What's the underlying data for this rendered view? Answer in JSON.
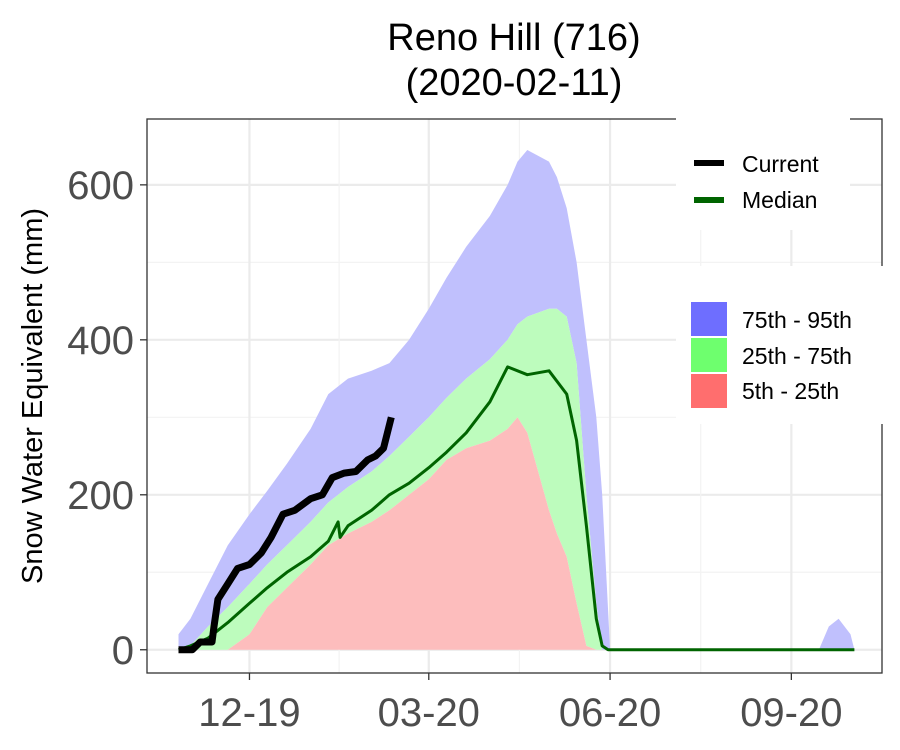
{
  "chart_data": {
    "type": "area",
    "title_lines": [
      "Reno Hill (716)",
      "(2020-02-11)"
    ],
    "ylabel": "Snow Water Equivalent (mm)",
    "xlabel": "",
    "ylim": [
      -30,
      685
    ],
    "xlim": [
      "2019-10-10",
      "2020-10-17"
    ],
    "y_ticks": [
      0,
      200,
      400,
      600
    ],
    "y_tick_labels": [
      "0",
      "200",
      "400",
      "600"
    ],
    "x_ticks": [
      "2019-12-01",
      "2020-03-01",
      "2020-06-01",
      "2020-09-01"
    ],
    "x_tick_labels": [
      "12-19",
      "03-20",
      "06-20",
      "09-20"
    ],
    "grid": true,
    "legend_lines": {
      "placement": "top-right",
      "entries": [
        {
          "name": "Current",
          "color": "#000000"
        },
        {
          "name": "Median",
          "color": "#006400"
        }
      ]
    },
    "legend_bands": {
      "placement": "right",
      "entries": [
        {
          "name": "75th - 95th",
          "color": "#6e6eff"
        },
        {
          "name": "25th - 75th",
          "color": "#6eff6e"
        },
        {
          "name": "5th - 25th",
          "color": "#ff6e6e"
        }
      ]
    },
    "band_colors": {
      "p75_95": "#c0c0fd",
      "p25_75": "#bdfcbd",
      "p5_25": "#fdbdbd"
    },
    "percentiles": {
      "x": [
        "2019-10-26",
        "2019-11-01",
        "2019-11-10",
        "2019-11-20",
        "2019-12-01",
        "2019-12-10",
        "2019-12-20",
        "2020-01-01",
        "2020-01-10",
        "2020-01-20",
        "2020-02-01",
        "2020-02-10",
        "2020-02-20",
        "2020-03-01",
        "2020-03-10",
        "2020-03-20",
        "2020-04-01",
        "2020-04-10",
        "2020-04-15",
        "2020-04-20",
        "2020-05-01",
        "2020-05-05",
        "2020-05-10",
        "2020-05-15",
        "2020-05-20",
        "2020-05-25",
        "2020-05-28",
        "2020-06-01",
        "2020-06-05",
        "2020-06-10",
        "2020-06-15",
        "2020-06-20",
        "2020-06-25",
        "2020-07-01",
        "2020-08-01",
        "2020-09-01",
        "2020-09-15",
        "2020-09-20",
        "2020-09-25",
        "2020-10-01",
        "2020-10-03"
      ],
      "p5": [
        0,
        0,
        0,
        0,
        0,
        0,
        0,
        0,
        0,
        0,
        0,
        0,
        0,
        0,
        0,
        0,
        0,
        0,
        0,
        0,
        0,
        0,
        0,
        0,
        0,
        0,
        0,
        0,
        0,
        0,
        0,
        0,
        0,
        0,
        0,
        0,
        0,
        0,
        0,
        0,
        0
      ],
      "p25": [
        0,
        0,
        0,
        0,
        20,
        55,
        80,
        110,
        135,
        150,
        165,
        180,
        200,
        220,
        245,
        260,
        270,
        285,
        300,
        280,
        180,
        150,
        120,
        60,
        5,
        0,
        0,
        0,
        0,
        0,
        0,
        0,
        0,
        0,
        0,
        0,
        0,
        0,
        0,
        0,
        0
      ],
      "p75": [
        0,
        5,
        30,
        55,
        85,
        110,
        135,
        165,
        190,
        210,
        230,
        250,
        275,
        300,
        325,
        350,
        375,
        400,
        420,
        430,
        440,
        440,
        430,
        370,
        200,
        60,
        0,
        0,
        0,
        0,
        0,
        0,
        0,
        0,
        0,
        0,
        0,
        0,
        0,
        0,
        0
      ],
      "p95": [
        20,
        40,
        85,
        135,
        175,
        205,
        240,
        285,
        330,
        350,
        360,
        370,
        400,
        440,
        480,
        520,
        560,
        600,
        630,
        645,
        630,
        610,
        570,
        500,
        400,
        300,
        200,
        0,
        0,
        0,
        0,
        0,
        0,
        0,
        0,
        0,
        0,
        30,
        40,
        20,
        0
      ]
    },
    "series": [
      {
        "name": "Current",
        "color": "#000000",
        "x": [
          "2019-10-26",
          "2019-11-02",
          "2019-11-06",
          "2019-11-12",
          "2019-11-13",
          "2019-11-15",
          "2019-11-20",
          "2019-11-25",
          "2019-12-01",
          "2019-12-07",
          "2019-12-12",
          "2019-12-18",
          "2019-12-24",
          "2020-01-01",
          "2020-01-07",
          "2020-01-12",
          "2020-01-18",
          "2020-01-24",
          "2020-01-30",
          "2020-02-03",
          "2020-02-07",
          "2020-02-09",
          "2020-02-11"
        ],
        "y": [
          0,
          0,
          10,
          10,
          30,
          65,
          85,
          105,
          110,
          125,
          145,
          175,
          180,
          195,
          200,
          222,
          228,
          230,
          245,
          250,
          260,
          280,
          300
        ]
      },
      {
        "name": "Median",
        "color": "#006400",
        "x": [
          "2019-10-26",
          "2019-11-01",
          "2019-11-10",
          "2019-11-20",
          "2019-12-01",
          "2019-12-10",
          "2019-12-20",
          "2020-01-01",
          "2020-01-10",
          "2020-01-15",
          "2020-01-16",
          "2020-01-20",
          "2020-02-01",
          "2020-02-10",
          "2020-02-20",
          "2020-03-01",
          "2020-03-10",
          "2020-03-20",
          "2020-04-01",
          "2020-04-10",
          "2020-04-20",
          "2020-05-01",
          "2020-05-10",
          "2020-05-15",
          "2020-05-20",
          "2020-05-25",
          "2020-05-28",
          "2020-05-31",
          "2020-06-01",
          "2020-10-03"
        ],
        "y": [
          0,
          5,
          15,
          35,
          60,
          80,
          100,
          120,
          140,
          165,
          145,
          160,
          180,
          200,
          215,
          235,
          255,
          280,
          320,
          365,
          355,
          360,
          330,
          270,
          160,
          40,
          5,
          0,
          0,
          0
        ]
      }
    ]
  }
}
